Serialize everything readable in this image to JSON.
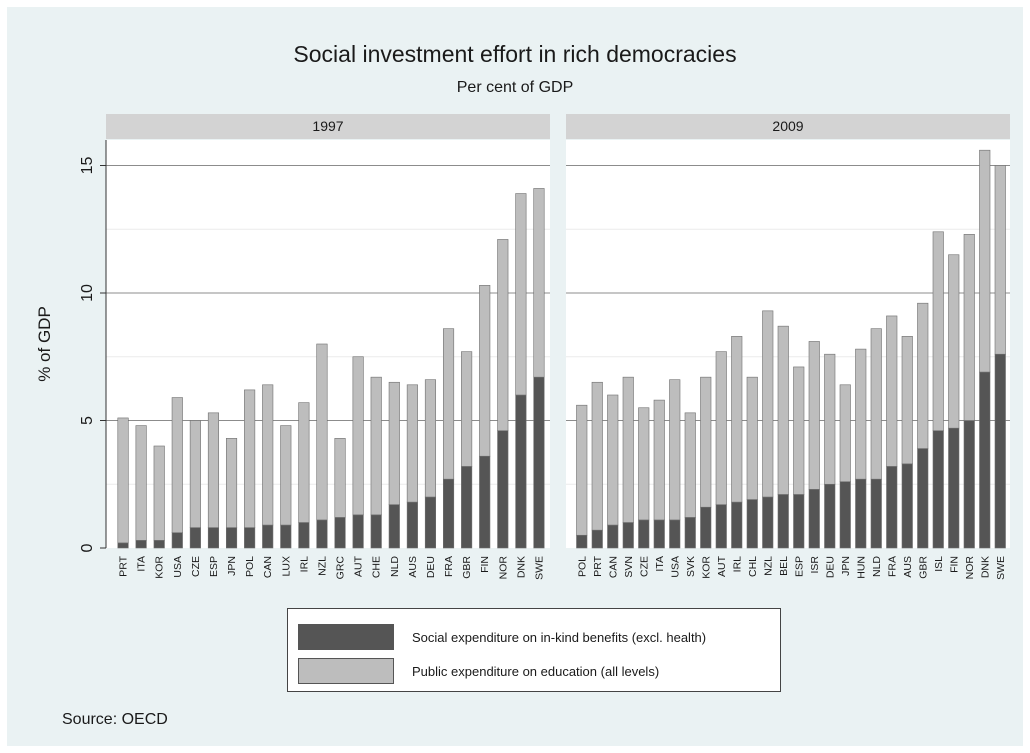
{
  "title": "Social investment effort in rich democracies",
  "subtitle": "Per cent of GDP",
  "source": "Source: OECD",
  "colors": {
    "in_kind": "#555555",
    "education": "#bdbdbd",
    "panel_header": "#d3d3d3",
    "grid": "#999999"
  },
  "chart_data": {
    "type": "bar",
    "stacked": true,
    "ylabel": "% of GDP",
    "ylim": [
      0,
      16
    ],
    "yticks": [
      0,
      5,
      10,
      15
    ],
    "legend_position": "bottom",
    "legend": [
      {
        "key": "in_kind",
        "label": "Social expenditure on in-kind benefits (excl. health)"
      },
      {
        "key": "education",
        "label": "Public expenditure on education (all levels)"
      }
    ],
    "panels": [
      {
        "label": "1997",
        "categories": [
          "PRT",
          "ITA",
          "KOR",
          "USA",
          "CZE",
          "ESP",
          "JPN",
          "POL",
          "CAN",
          "LUX",
          "IRL",
          "NZL",
          "GRC",
          "AUT",
          "CHE",
          "NLD",
          "AUS",
          "DEU",
          "FRA",
          "GBR",
          "FIN",
          "NOR",
          "DNK",
          "SWE"
        ],
        "series": [
          {
            "name": "Social expenditure on in-kind benefits (excl. health)",
            "key": "in_kind",
            "values": [
              0.2,
              0.3,
              0.3,
              0.6,
              0.8,
              0.8,
              0.8,
              0.8,
              0.9,
              0.9,
              1.0,
              1.1,
              1.2,
              1.3,
              1.3,
              1.7,
              1.8,
              2.0,
              2.7,
              3.2,
              3.6,
              4.6,
              6.0,
              6.7
            ]
          },
          {
            "name": "Public expenditure on education (all levels)",
            "key": "education",
            "values": [
              4.9,
              4.5,
              3.7,
              5.3,
              4.2,
              4.5,
              3.5,
              5.4,
              5.5,
              3.9,
              4.7,
              6.9,
              3.1,
              6.2,
              5.4,
              4.8,
              4.6,
              4.6,
              5.9,
              4.5,
              6.7,
              7.5,
              7.9,
              7.4
            ]
          }
        ]
      },
      {
        "label": "2009",
        "categories": [
          "POL",
          "PRT",
          "CAN",
          "SVN",
          "CZE",
          "ITA",
          "USA",
          "SVK",
          "KOR",
          "AUT",
          "IRL",
          "CHL",
          "NZL",
          "BEL",
          "ESP",
          "ISR",
          "DEU",
          "JPN",
          "HUN",
          "NLD",
          "FRA",
          "AUS",
          "GBR",
          "ISL",
          "FIN",
          "NOR",
          "DNK",
          "SWE"
        ],
        "series": [
          {
            "name": "Social expenditure on in-kind benefits (excl. health)",
            "key": "in_kind",
            "values": [
              0.5,
              0.7,
              0.9,
              1.0,
              1.1,
              1.1,
              1.1,
              1.2,
              1.6,
              1.7,
              1.8,
              1.9,
              2.0,
              2.1,
              2.1,
              2.3,
              2.5,
              2.6,
              2.7,
              2.7,
              3.2,
              3.3,
              3.9,
              4.6,
              4.7,
              5.0,
              6.9,
              7.6
            ]
          },
          {
            "name": "Public expenditure on education (all levels)",
            "key": "education",
            "values": [
              5.1,
              5.8,
              5.1,
              5.7,
              4.4,
              4.7,
              5.5,
              4.1,
              5.1,
              6.0,
              6.5,
              4.8,
              7.3,
              6.6,
              5.0,
              5.8,
              5.1,
              3.8,
              5.1,
              5.9,
              5.9,
              5.0,
              5.7,
              7.8,
              6.8,
              7.3,
              8.7,
              7.4
            ]
          }
        ]
      }
    ]
  }
}
